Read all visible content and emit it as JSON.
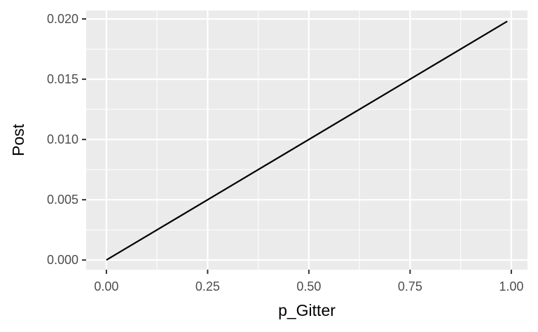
{
  "chart_data": {
    "type": "line",
    "title": "",
    "xlabel": "p_Gitter",
    "ylabel": "Post",
    "xlim": [
      -0.05,
      1.04
    ],
    "ylim": [
      -0.0008,
      0.0207
    ],
    "x_ticks": [
      0.0,
      0.25,
      0.5,
      0.75,
      1.0
    ],
    "x_tick_labels": [
      "0.00",
      "0.25",
      "0.50",
      "0.75",
      "1.00"
    ],
    "y_ticks": [
      0.0,
      0.005,
      0.01,
      0.015,
      0.02
    ],
    "y_tick_labels": [
      "0.000",
      "0.005",
      "0.010",
      "0.015",
      "0.020"
    ],
    "grid": true,
    "panel_color": "#ebebeb",
    "line_color": "#000000",
    "series": [
      {
        "x": [
          0.0,
          0.99
        ],
        "y": [
          0.0,
          0.0198
        ]
      }
    ]
  }
}
